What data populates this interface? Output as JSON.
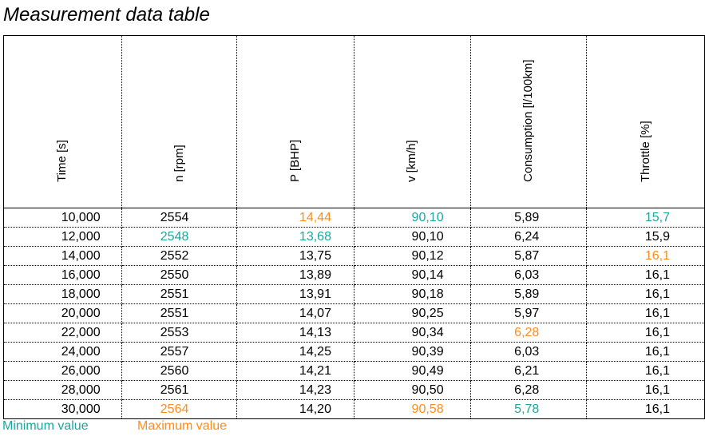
{
  "title": "Measurement data table",
  "colors": {
    "min": "#1aa7a0",
    "max": "#ff8c1a",
    "text": "#000000"
  },
  "columns": [
    "Time [s]",
    "n [rpm]",
    "P [BHP]",
    "v [km/h]",
    "Consumption [l/100km]",
    "Throttle [%]"
  ],
  "rows": [
    {
      "cells": [
        "10,000",
        "2554",
        "14,44",
        "90,10",
        "5,89",
        "15,7"
      ],
      "marks": [
        "",
        "",
        "max",
        "min",
        "",
        "min"
      ]
    },
    {
      "cells": [
        "12,000",
        "2548",
        "13,68",
        "90,10",
        "6,24",
        "15,9"
      ],
      "marks": [
        "",
        "min",
        "min",
        "",
        "",
        ""
      ]
    },
    {
      "cells": [
        "14,000",
        "2552",
        "13,75",
        "90,12",
        "5,87",
        "16,1"
      ],
      "marks": [
        "",
        "",
        "",
        "",
        "",
        "max"
      ]
    },
    {
      "cells": [
        "16,000",
        "2550",
        "13,89",
        "90,14",
        "6,03",
        "16,1"
      ],
      "marks": [
        "",
        "",
        "",
        "",
        "",
        ""
      ]
    },
    {
      "cells": [
        "18,000",
        "2551",
        "13,91",
        "90,18",
        "5,89",
        "16,1"
      ],
      "marks": [
        "",
        "",
        "",
        "",
        "",
        ""
      ]
    },
    {
      "cells": [
        "20,000",
        "2551",
        "14,07",
        "90,25",
        "5,97",
        "16,1"
      ],
      "marks": [
        "",
        "",
        "",
        "",
        "",
        ""
      ]
    },
    {
      "cells": [
        "22,000",
        "2553",
        "14,13",
        "90,34",
        "6,28",
        "16,1"
      ],
      "marks": [
        "",
        "",
        "",
        "",
        "max",
        ""
      ]
    },
    {
      "cells": [
        "24,000",
        "2557",
        "14,25",
        "90,39",
        "6,03",
        "16,1"
      ],
      "marks": [
        "",
        "",
        "",
        "",
        "",
        ""
      ]
    },
    {
      "cells": [
        "26,000",
        "2560",
        "14,21",
        "90,49",
        "6,21",
        "16,1"
      ],
      "marks": [
        "",
        "",
        "",
        "",
        "",
        ""
      ]
    },
    {
      "cells": [
        "28,000",
        "2561",
        "14,23",
        "90,50",
        "6,28",
        "16,1"
      ],
      "marks": [
        "",
        "",
        "",
        "",
        "",
        ""
      ]
    },
    {
      "cells": [
        "30,000",
        "2564",
        "14,20",
        "90,58",
        "5,78",
        "16,1"
      ],
      "marks": [
        "",
        "max",
        "",
        "max",
        "min",
        ""
      ]
    }
  ],
  "legend": {
    "min_label": "Minimum value",
    "max_label": "Maximum value"
  }
}
